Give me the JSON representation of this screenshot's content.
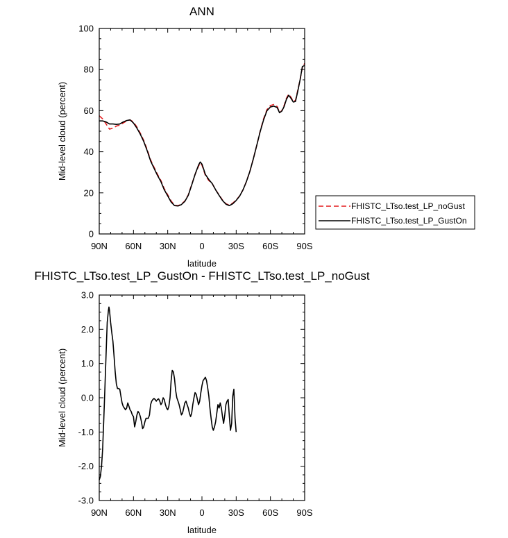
{
  "chart_data": [
    {
      "type": "line",
      "title": "ANN",
      "xlabel": "latitude",
      "ylabel": "Mid-level cloud (percent)",
      "xlim": [
        90,
        -90
      ],
      "ylim": [
        0,
        100
      ],
      "x_ticks": [
        90,
        60,
        30,
        0,
        -30,
        -60,
        -90
      ],
      "x_tick_labels": [
        "90N",
        "60N",
        "30N",
        "0",
        "30S",
        "60S",
        "90S"
      ],
      "y_ticks": [
        0,
        20,
        40,
        60,
        80,
        100
      ],
      "y_tick_labels": [
        "0",
        "20",
        "40",
        "60",
        "80",
        "100"
      ],
      "legend_position": "right",
      "series": [
        {
          "name": "FHISTC_LTso.test_LP_noGust",
          "color": "#e41a1c",
          "dash": "dashed",
          "points": [
            [
              90,
              57.5
            ],
            [
              87,
              56
            ],
            [
              84,
              53.5
            ],
            [
              81,
              51
            ],
            [
              78,
              51.5
            ],
            [
              75,
              52.5
            ],
            [
              72,
              53
            ],
            [
              69,
              54
            ],
            [
              66,
              55
            ],
            [
              63,
              55.5
            ],
            [
              60,
              54.5
            ],
            [
              57,
              52
            ],
            [
              54,
              49
            ],
            [
              51,
              45.5
            ],
            [
              48,
              41
            ],
            [
              45,
              36
            ],
            [
              42,
              32.5
            ],
            [
              39,
              29
            ],
            [
              36,
              26
            ],
            [
              33,
              22
            ],
            [
              30,
              19
            ],
            [
              27,
              16
            ],
            [
              24,
              14
            ],
            [
              21,
              13.8
            ],
            [
              18,
              14.5
            ],
            [
              15,
              16
            ],
            [
              12,
              19
            ],
            [
              9,
              24
            ],
            [
              6,
              29
            ],
            [
              3,
              33
            ],
            [
              1.5,
              34.5
            ],
            [
              0,
              33.5
            ],
            [
              -1.5,
              31
            ],
            [
              -3,
              28.5
            ],
            [
              -6,
              26
            ],
            [
              -9,
              24.5
            ],
            [
              -12,
              21.5
            ],
            [
              -15,
              19
            ],
            [
              -18,
              16.5
            ],
            [
              -21,
              14.7
            ],
            [
              -24,
              14
            ],
            [
              -27,
              15
            ],
            [
              -30,
              16.5
            ],
            [
              -33,
              18.5
            ],
            [
              -36,
              21.5
            ],
            [
              -39,
              25.5
            ],
            [
              -42,
              30.5
            ],
            [
              -45,
              36.5
            ],
            [
              -48,
              43
            ],
            [
              -51,
              50
            ],
            [
              -54,
              56
            ],
            [
              -57,
              60.5
            ],
            [
              -60,
              62.5
            ],
            [
              -63,
              63
            ],
            [
              -66,
              62
            ],
            [
              -68,
              59
            ],
            [
              -70,
              60
            ],
            [
              -72,
              62.5
            ],
            [
              -74,
              66
            ],
            [
              -76,
              68
            ],
            [
              -78,
              66.5
            ],
            [
              -80,
              64.5
            ],
            [
              -82,
              65
            ],
            [
              -84,
              70
            ],
            [
              -86,
              75
            ],
            [
              -88,
              81
            ],
            [
              -90,
              83
            ]
          ]
        },
        {
          "name": "FHISTC_LTso.test_LP_GustOn",
          "color": "#000000",
          "dash": "solid",
          "points": [
            [
              90,
              55
            ],
            [
              87,
              55
            ],
            [
              84,
              54.5
            ],
            [
              81,
              53.5
            ],
            [
              78,
              53.5
            ],
            [
              75,
              53.3
            ],
            [
              72,
              53.5
            ],
            [
              69,
              54.5
            ],
            [
              66,
              55.2
            ],
            [
              63,
              55.5
            ],
            [
              60,
              54
            ],
            [
              57,
              51.5
            ],
            [
              54,
              48.5
            ],
            [
              51,
              45
            ],
            [
              48,
              40.5
            ],
            [
              45,
              35.5
            ],
            [
              42,
              32
            ],
            [
              39,
              28.5
            ],
            [
              36,
              25.5
            ],
            [
              33,
              21.5
            ],
            [
              30,
              18.5
            ],
            [
              27,
              15.5
            ],
            [
              24,
              13.8
            ],
            [
              21,
              13.6
            ],
            [
              18,
              14.3
            ],
            [
              15,
              15.8
            ],
            [
              12,
              18.8
            ],
            [
              9,
              23.8
            ],
            [
              6,
              29
            ],
            [
              3,
              33.5
            ],
            [
              1.5,
              35
            ],
            [
              0,
              34
            ],
            [
              -1.5,
              31.5
            ],
            [
              -3,
              29
            ],
            [
              -6,
              26.5
            ],
            [
              -9,
              24.5
            ],
            [
              -12,
              21.5
            ],
            [
              -15,
              18.8
            ],
            [
              -18,
              16.3
            ],
            [
              -21,
              14.5
            ],
            [
              -24,
              13.8
            ],
            [
              -27,
              14.7
            ],
            [
              -30,
              16.3
            ],
            [
              -33,
              18.4
            ],
            [
              -36,
              21.5
            ],
            [
              -39,
              25.5
            ],
            [
              -42,
              30.5
            ],
            [
              -45,
              36.5
            ],
            [
              -48,
              43
            ],
            [
              -51,
              49.8
            ],
            [
              -54,
              55.5
            ],
            [
              -57,
              60
            ],
            [
              -60,
              61.8
            ],
            [
              -63,
              62.2
            ],
            [
              -66,
              61.5
            ],
            [
              -68,
              59
            ],
            [
              -70,
              59.8
            ],
            [
              -72,
              62
            ],
            [
              -74,
              65.5
            ],
            [
              -76,
              67.5
            ],
            [
              -78,
              66
            ],
            [
              -80,
              64.2
            ],
            [
              -82,
              64.5
            ],
            [
              -84,
              69.5
            ],
            [
              -86,
              75
            ],
            [
              -88,
              81.5
            ],
            [
              -90,
              82
            ]
          ]
        }
      ]
    },
    {
      "type": "line",
      "title": "FHISTC_LTso.test_LP_GustOn - FHISTC_LTso.test_LP_noGust",
      "xlabel": "latitude",
      "ylabel": "Mid-level cloud (percent)",
      "xlim": [
        90,
        -90
      ],
      "ylim": [
        -3,
        3
      ],
      "x_ticks": [
        90,
        60,
        30,
        0,
        -30,
        -60,
        -90
      ],
      "x_tick_labels": [
        "90N",
        "60N",
        "30N",
        "0",
        "30S",
        "60S",
        "90S"
      ],
      "y_ticks": [
        -3,
        -2,
        -1,
        0,
        1,
        2,
        3
      ],
      "y_tick_labels": [
        "-3.0",
        "-2.0",
        "-1.0",
        "0.0",
        "1.0",
        "2.0",
        "3.0"
      ],
      "series": [
        {
          "color": "#000000",
          "dash": "solid",
          "points": [
            [
              90,
              -2.4
            ],
            [
              89,
              -2.3
            ],
            [
              88,
              -2.0
            ],
            [
              87,
              -1.5
            ],
            [
              86,
              -0.6
            ],
            [
              85,
              0.3
            ],
            [
              84,
              1.3
            ],
            [
              83,
              2.2
            ],
            [
              82,
              2.55
            ],
            [
              81.5,
              2.65
            ],
            [
              81,
              2.55
            ],
            [
              80,
              2.2
            ],
            [
              79,
              1.9
            ],
            [
              78,
              1.65
            ],
            [
              77,
              1.2
            ],
            [
              76,
              0.75
            ],
            [
              75,
              0.4
            ],
            [
              74,
              0.27
            ],
            [
              73,
              0.27
            ],
            [
              72,
              0.25
            ],
            [
              71,
              0.05
            ],
            [
              70,
              -0.15
            ],
            [
              69,
              -0.25
            ],
            [
              68,
              -0.3
            ],
            [
              67,
              -0.35
            ],
            [
              66,
              -0.3
            ],
            [
              65,
              -0.15
            ],
            [
              64,
              -0.25
            ],
            [
              63,
              -0.35
            ],
            [
              62,
              -0.4
            ],
            [
              61,
              -0.5
            ],
            [
              60,
              -0.55
            ],
            [
              59,
              -0.85
            ],
            [
              58,
              -0.7
            ],
            [
              57,
              -0.5
            ],
            [
              56,
              -0.4
            ],
            [
              55,
              -0.45
            ],
            [
              54,
              -0.55
            ],
            [
              53,
              -0.7
            ],
            [
              52,
              -0.9
            ],
            [
              51,
              -0.85
            ],
            [
              50,
              -0.7
            ],
            [
              49,
              -0.6
            ],
            [
              48,
              -0.6
            ],
            [
              47,
              -0.6
            ],
            [
              46,
              -0.5
            ],
            [
              45,
              -0.2
            ],
            [
              44,
              -0.1
            ],
            [
              43,
              -0.05
            ],
            [
              42,
              -0.02
            ],
            [
              41,
              -0.05
            ],
            [
              40,
              -0.1
            ],
            [
              39,
              -0.05
            ],
            [
              38,
              -0.03
            ],
            [
              37,
              -0.1
            ],
            [
              36,
              -0.2
            ],
            [
              35,
              -0.15
            ],
            [
              34,
              0.0
            ],
            [
              33,
              -0.05
            ],
            [
              32,
              -0.2
            ],
            [
              31,
              -0.3
            ],
            [
              30,
              -0.35
            ],
            [
              29,
              -0.25
            ],
            [
              28,
              0.0
            ],
            [
              27,
              0.5
            ],
            [
              26,
              0.8
            ],
            [
              25,
              0.75
            ],
            [
              24,
              0.55
            ],
            [
              23,
              0.2
            ],
            [
              22,
              0.0
            ],
            [
              21,
              -0.1
            ],
            [
              20,
              -0.2
            ],
            [
              19,
              -0.35
            ],
            [
              18,
              -0.5
            ],
            [
              17,
              -0.45
            ],
            [
              16,
              -0.3
            ],
            [
              15,
              -0.15
            ],
            [
              14,
              -0.1
            ],
            [
              13,
              -0.2
            ],
            [
              12,
              -0.3
            ],
            [
              11,
              -0.45
            ],
            [
              10,
              -0.55
            ],
            [
              9,
              -0.45
            ],
            [
              8,
              -0.2
            ],
            [
              7,
              0.0
            ],
            [
              6,
              0.15
            ],
            [
              5,
              0.1
            ],
            [
              4,
              -0.05
            ],
            [
              3,
              -0.2
            ],
            [
              2,
              -0.1
            ],
            [
              1,
              0.15
            ],
            [
              0,
              0.35
            ],
            [
              -1,
              0.5
            ],
            [
              -2,
              0.55
            ],
            [
              -3,
              0.6
            ],
            [
              -4,
              0.5
            ],
            [
              -5,
              0.3
            ],
            [
              -6,
              0.05
            ],
            [
              -7,
              -0.3
            ],
            [
              -8,
              -0.6
            ],
            [
              -9,
              -0.85
            ],
            [
              -10,
              -0.95
            ],
            [
              -11,
              -0.85
            ],
            [
              -12,
              -0.7
            ],
            [
              -13,
              -0.45
            ],
            [
              -14,
              -0.2
            ],
            [
              -15,
              -0.3
            ],
            [
              -16,
              -0.15
            ],
            [
              -17,
              -0.3
            ],
            [
              -18,
              -0.55
            ],
            [
              -19,
              -0.75
            ],
            [
              -20,
              -0.5
            ],
            [
              -21,
              -0.2
            ],
            [
              -22,
              -0.1
            ],
            [
              -23,
              -0.05
            ],
            [
              -24,
              -0.55
            ],
            [
              -25,
              -0.95
            ],
            [
              -26,
              -0.75
            ],
            [
              -27,
              0.05
            ],
            [
              -28,
              0.25
            ],
            [
              -29,
              -0.6
            ],
            [
              -30,
              -1.0
            ]
          ]
        }
      ]
    }
  ]
}
